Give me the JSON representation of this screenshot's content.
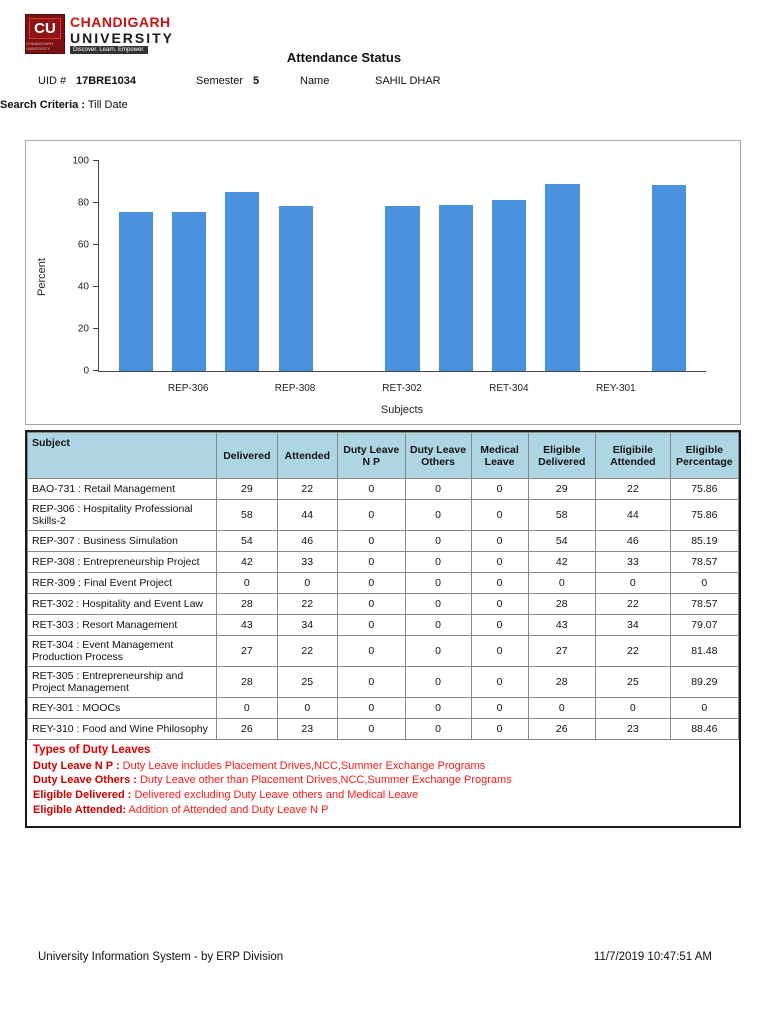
{
  "header": {
    "title": "Attendance Status",
    "logo": {
      "cu": "CU",
      "line1": "CHANDIGARH",
      "line2": "UNIVERSITY",
      "tagline": "Discover. Learn. Empower."
    },
    "uid_label": "UID #",
    "uid_value": "17BRE1034",
    "semester_label": "Semester",
    "semester_value": "5",
    "name_label": "Name",
    "name_value": "SAHIL DHAR",
    "search_label": "Search Criteria :",
    "search_value": "Till Date"
  },
  "chart_data": {
    "type": "bar",
    "title": "",
    "xlabel": "Subjects",
    "ylabel": "Percent",
    "ylim": [
      0,
      100
    ],
    "yticks": [
      0,
      20,
      40,
      60,
      80,
      100
    ],
    "grid": false,
    "bar_color": "#4b92de",
    "categories": [
      "BAO-731",
      "REP-306",
      "REP-307",
      "REP-308",
      "RER-309",
      "RET-302",
      "RET-303",
      "RET-304",
      "RET-305",
      "REY-301",
      "REY-310"
    ],
    "values": [
      75.86,
      75.86,
      85.19,
      78.57,
      0,
      78.57,
      79.07,
      81.48,
      89.29,
      0,
      88.46
    ],
    "x_tick_labels": [
      "",
      "REP-306",
      "",
      "REP-308",
      "",
      "RET-302",
      "",
      "RET-304",
      "",
      "REY-301",
      ""
    ]
  },
  "table": {
    "headers": [
      "Subject",
      "Delivered",
      "Attended",
      "Duty Leave N P",
      "Duty Leave Others",
      "Medical Leave",
      "Eligible Delivered",
      "Eligibile Attended",
      "Eligible Percentage"
    ],
    "rows": [
      [
        "BAO-731 : Retail Management",
        "29",
        "22",
        "0",
        "0",
        "0",
        "29",
        "22",
        "75.86"
      ],
      [
        "REP-306 : Hospitality Professional Skills-2",
        "58",
        "44",
        "0",
        "0",
        "0",
        "58",
        "44",
        "75.86"
      ],
      [
        "REP-307 : Business Simulation",
        "54",
        "46",
        "0",
        "0",
        "0",
        "54",
        "46",
        "85.19"
      ],
      [
        "REP-308 : Entrepreneurship Project",
        "42",
        "33",
        "0",
        "0",
        "0",
        "42",
        "33",
        "78.57"
      ],
      [
        "RER-309 : Final Event Project",
        "0",
        "0",
        "0",
        "0",
        "0",
        "0",
        "0",
        "0"
      ],
      [
        "RET-302 : Hospitality and Event Law",
        "28",
        "22",
        "0",
        "0",
        "0",
        "28",
        "22",
        "78.57"
      ],
      [
        "RET-303 : Resort Management",
        "43",
        "34",
        "0",
        "0",
        "0",
        "43",
        "34",
        "79.07"
      ],
      [
        "RET-304 : Event Management Production Process",
        "27",
        "22",
        "0",
        "0",
        "0",
        "27",
        "22",
        "81.48"
      ],
      [
        "RET-305 : Entrepreneurship and Project Management",
        "28",
        "25",
        "0",
        "0",
        "0",
        "28",
        "25",
        "89.29"
      ],
      [
        "REY-301 : MOOCs",
        "0",
        "0",
        "0",
        "0",
        "0",
        "0",
        "0",
        "0"
      ],
      [
        "REY-310 : Food and Wine Philosophy",
        "26",
        "23",
        "0",
        "0",
        "0",
        "26",
        "23",
        "88.46"
      ]
    ]
  },
  "notes": {
    "title": "Types of Duty Leaves",
    "items": [
      {
        "label": "Duty Leave N P :",
        "text": " Duty Leave includes Placement Drives,NCC,Summer Exchange Programs"
      },
      {
        "label": "Duty Leave Others :",
        "text": " Duty Leave other than Placement Drives,NCC,Summer Exchange Programs"
      },
      {
        "label": "Eligible Delivered :",
        "text": " Delivered excluding Duty Leave others and Medical Leave"
      },
      {
        "label": "Eligible Attended:",
        "text": " Addition of  Attended and Duty Leave N P"
      }
    ]
  },
  "footer": {
    "left": "University Information System - by ERP Division",
    "right": "11/7/2019 10:47:51 AM"
  }
}
